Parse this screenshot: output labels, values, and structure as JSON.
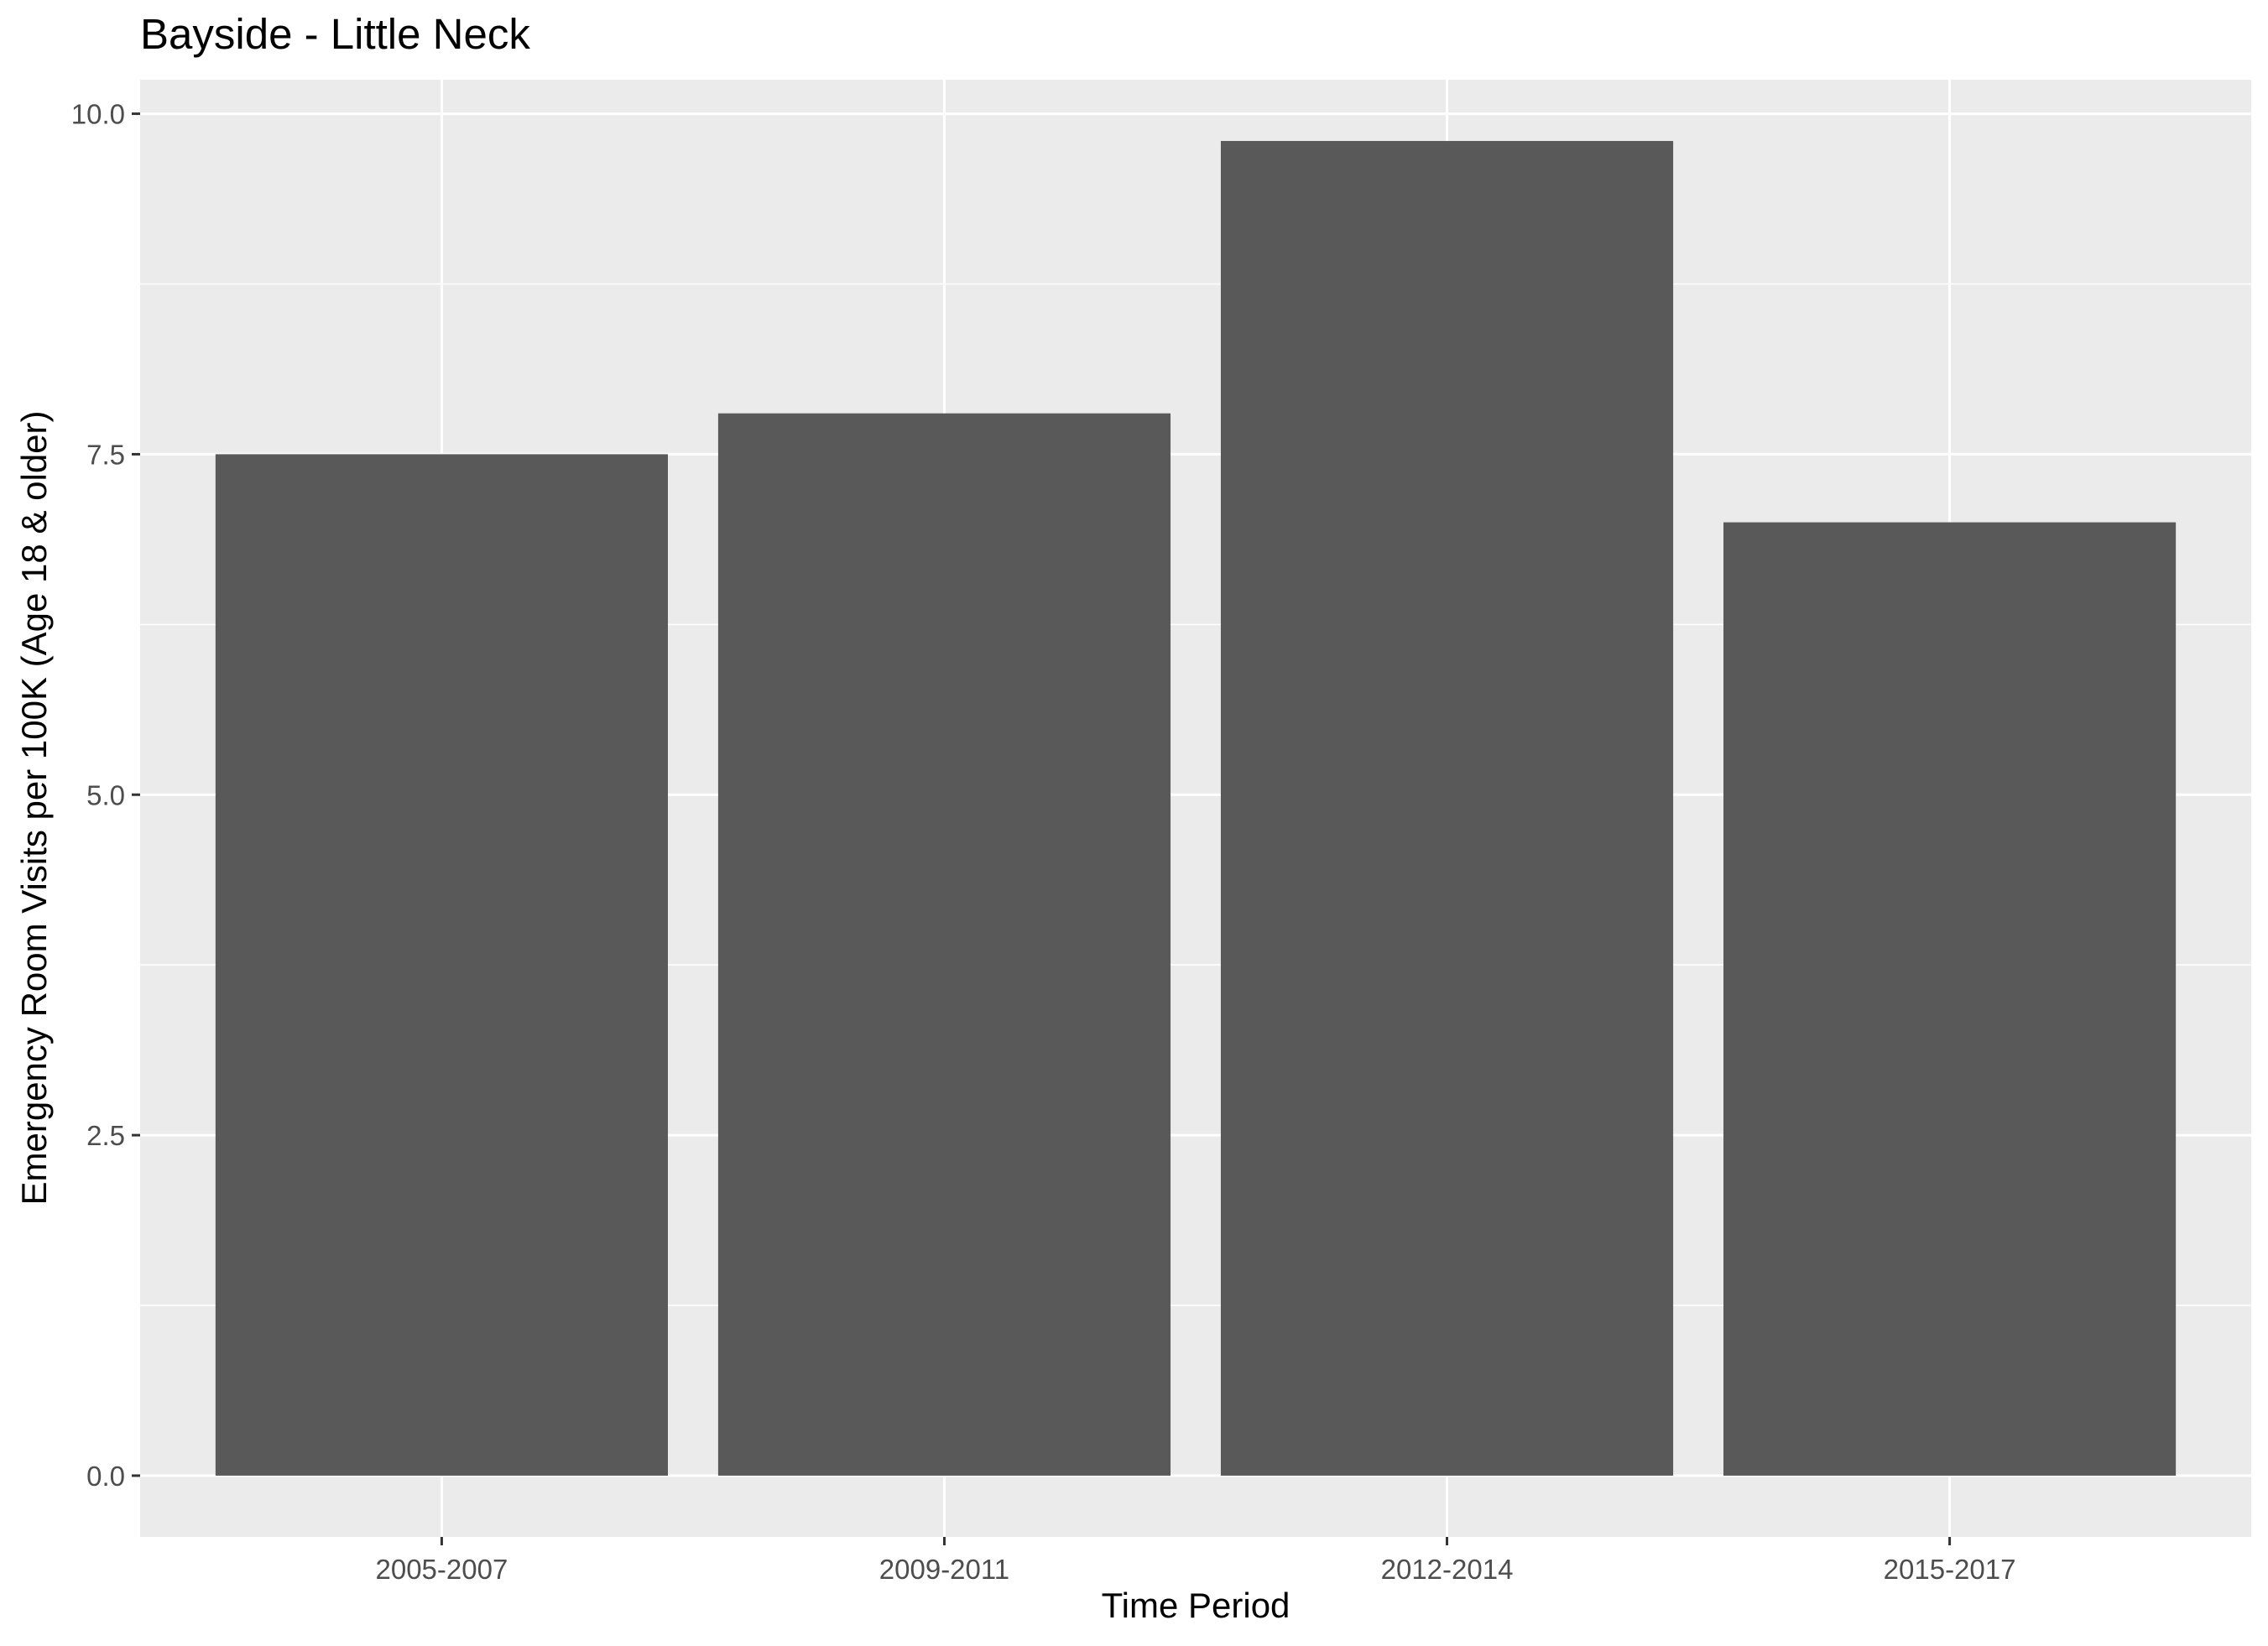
{
  "chart_data": {
    "type": "bar",
    "title": "Bayside - Little Neck",
    "xlabel": "Time Period",
    "ylabel": "Emergency Room Visits per 100K (Age 18 & older)",
    "categories": [
      "2005-2007",
      "2009-2011",
      "2012-2014",
      "2015-2017"
    ],
    "values": [
      7.5,
      7.8,
      9.8,
      7.0
    ],
    "ylim": [
      -0.45,
      10.25
    ],
    "yticks": [
      0,
      2.5,
      5,
      7.5,
      10
    ],
    "ytick_labels": [
      "0.0",
      "2.5",
      "5.0",
      "7.5",
      "10.0"
    ],
    "grid": true,
    "legend": "none",
    "colors": {
      "bar": "#595959",
      "panel": "#ebebeb",
      "grid": "#ffffff",
      "tick": "#333333"
    }
  }
}
